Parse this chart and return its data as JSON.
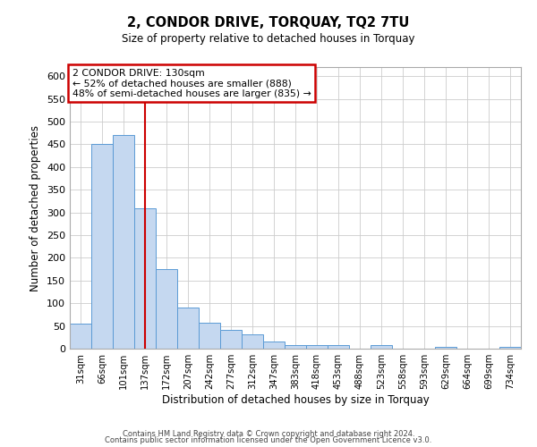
{
  "title": "2, CONDOR DRIVE, TORQUAY, TQ2 7TU",
  "subtitle": "Size of property relative to detached houses in Torquay",
  "xlabel": "Distribution of detached houses by size in Torquay",
  "ylabel": "Number of detached properties",
  "bar_color": "#c5d8f0",
  "bar_edge_color": "#5b9bd5",
  "background_color": "#ffffff",
  "grid_color": "#cccccc",
  "annotation_box_color": "#cc0000",
  "vline_color": "#cc0000",
  "vline_x": 3,
  "annotation_text_line1": "2 CONDOR DRIVE: 130sqm",
  "annotation_text_line2": "← 52% of detached houses are smaller (888)",
  "annotation_text_line3": "48% of semi-detached houses are larger (835) →",
  "bins": [
    "31sqm",
    "66sqm",
    "101sqm",
    "137sqm",
    "172sqm",
    "207sqm",
    "242sqm",
    "277sqm",
    "312sqm",
    "347sqm",
    "383sqm",
    "418sqm",
    "453sqm",
    "488sqm",
    "523sqm",
    "558sqm",
    "593sqm",
    "629sqm",
    "664sqm",
    "699sqm",
    "734sqm"
  ],
  "values": [
    55,
    450,
    470,
    310,
    175,
    90,
    58,
    42,
    32,
    15,
    7,
    8,
    7,
    0,
    8,
    0,
    0,
    4,
    0,
    0,
    4
  ],
  "ylim": [
    0,
    620
  ],
  "yticks": [
    0,
    50,
    100,
    150,
    200,
    250,
    300,
    350,
    400,
    450,
    500,
    550,
    600
  ],
  "footer1": "Contains HM Land Registry data © Crown copyright and database right 2024.",
  "footer2": "Contains public sector information licensed under the Open Government Licence v3.0."
}
